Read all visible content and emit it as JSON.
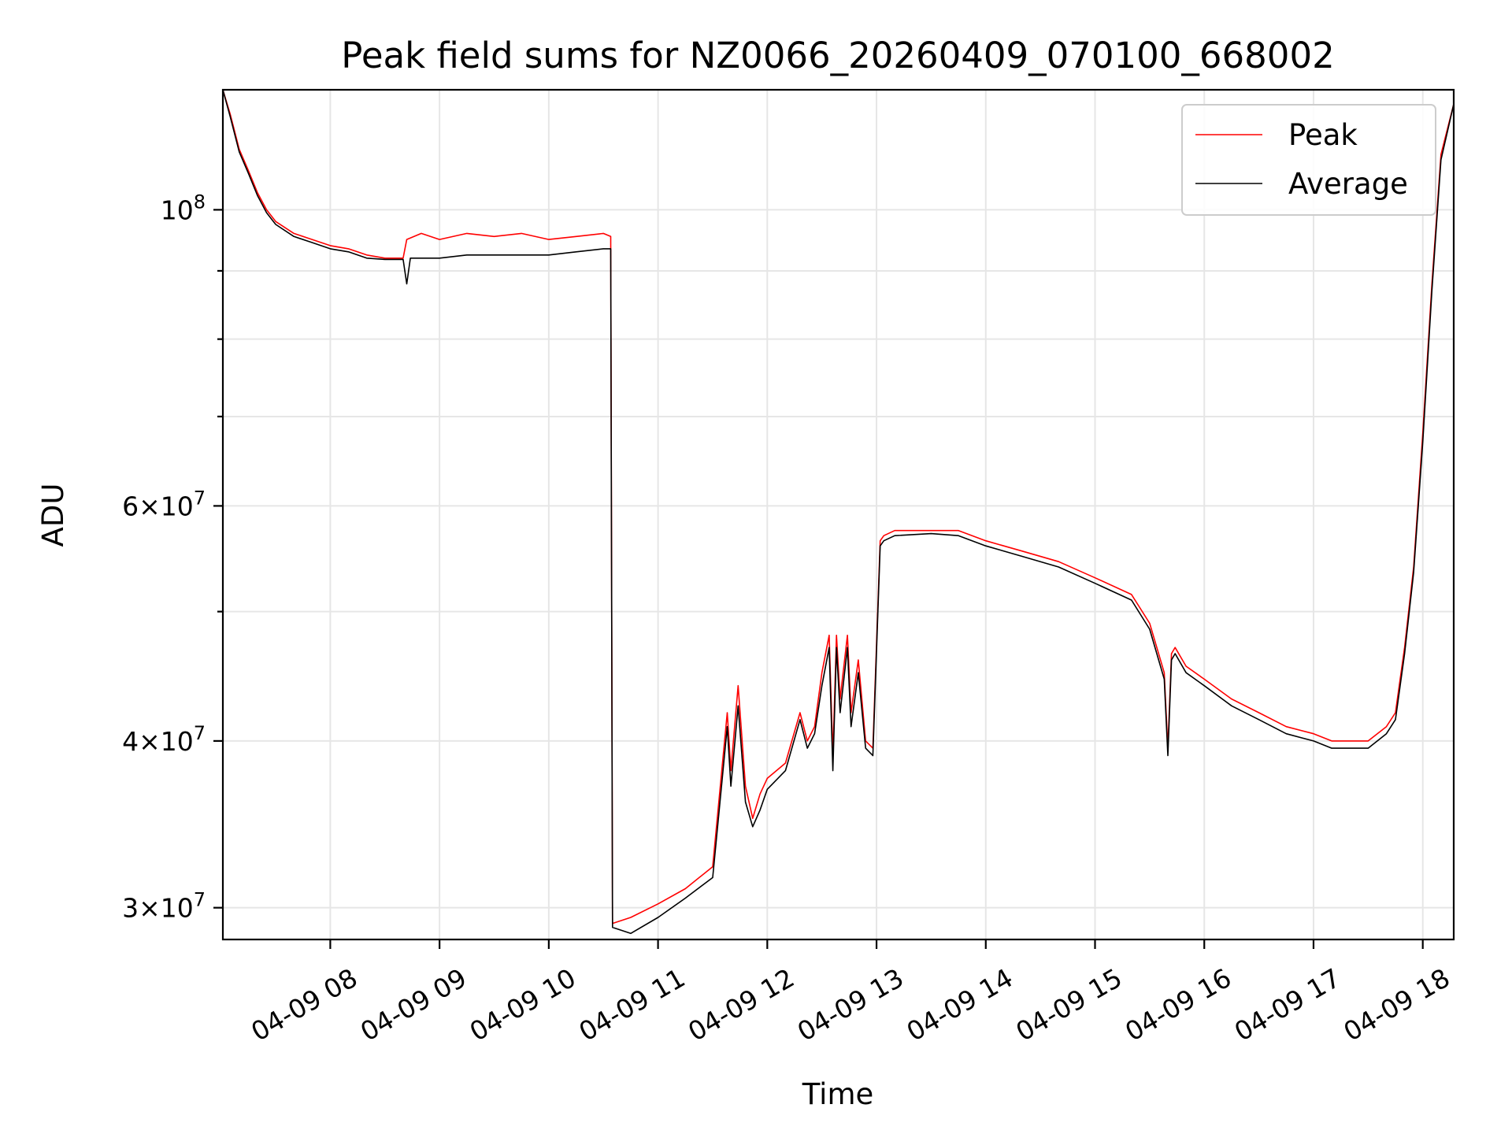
{
  "chart_data": {
    "type": "line",
    "title": "Peak field sums for NZ0066_20260409_070100_668002",
    "xlabel": "Time",
    "ylabel": "ADU",
    "xlim": [
      "04-09 07:01",
      "04-09 18:17"
    ],
    "ylim": [
      28400000,
      123000000
    ],
    "yscale": "log",
    "grid": true,
    "legend_position": "top-right",
    "x_ticks": [
      "04-09 08",
      "04-09 09",
      "04-09 10",
      "04-09 11",
      "04-09 12",
      "04-09 13",
      "04-09 14",
      "04-09 15",
      "04-09 16",
      "04-09 17",
      "04-09 18"
    ],
    "y_ticks": [
      {
        "value": 30000000,
        "mantissa": "3",
        "exponent": "7"
      },
      {
        "value": 40000000,
        "mantissa": "4",
        "exponent": "7"
      },
      {
        "value": 60000000,
        "mantissa": "6",
        "exponent": "7"
      },
      {
        "value": 100000000,
        "mantissa": "",
        "exponent": "8"
      }
    ],
    "y_minor_ticks": [
      50000000,
      70000000,
      80000000,
      90000000
    ],
    "series": [
      {
        "name": "Peak",
        "color": "#ff0000",
        "x": [
          "04-09 07:01",
          "04-09 07:05",
          "04-09 07:10",
          "04-09 07:15",
          "04-09 07:20",
          "04-09 07:25",
          "04-09 07:30",
          "04-09 07:40",
          "04-09 07:50",
          "04-09 08:00",
          "04-09 08:10",
          "04-09 08:20",
          "04-09 08:30",
          "04-09 08:40",
          "04-09 08:42",
          "04-09 08:50",
          "04-09 09:00",
          "04-09 09:15",
          "04-09 09:30",
          "04-09 09:45",
          "04-09 10:00",
          "04-09 10:15",
          "04-09 10:30",
          "04-09 10:34",
          "04-09 10:35",
          "04-09 10:45",
          "04-09 11:00",
          "04-09 11:15",
          "04-09 11:30",
          "04-09 11:38",
          "04-09 11:40",
          "04-09 11:44",
          "04-09 11:48",
          "04-09 11:52",
          "04-09 11:56",
          "04-09 12:00",
          "04-09 12:10",
          "04-09 12:18",
          "04-09 12:22",
          "04-09 12:26",
          "04-09 12:30",
          "04-09 12:34",
          "04-09 12:36",
          "04-09 12:38",
          "04-09 12:40",
          "04-09 12:44",
          "04-09 12:46",
          "04-09 12:50",
          "04-09 12:54",
          "04-09 12:58",
          "04-09 13:02",
          "04-09 13:04",
          "04-09 13:10",
          "04-09 13:30",
          "04-09 13:45",
          "04-09 14:00",
          "04-09 14:20",
          "04-09 14:40",
          "04-09 15:00",
          "04-09 15:20",
          "04-09 15:30",
          "04-09 15:38",
          "04-09 15:40",
          "04-09 15:42",
          "04-09 15:44",
          "04-09 15:50",
          "04-09 16:00",
          "04-09 16:15",
          "04-09 16:30",
          "04-09 16:45",
          "04-09 17:00",
          "04-09 17:10",
          "04-09 17:20",
          "04-09 17:30",
          "04-09 17:40",
          "04-09 17:45",
          "04-09 17:50",
          "04-09 17:55",
          "04-09 18:00",
          "04-09 18:05",
          "04-09 18:10",
          "04-09 18:17"
        ],
        "y": [
          123000000,
          118000000,
          111000000,
          107000000,
          103000000,
          100000000,
          98000000,
          96000000,
          95000000,
          94000000,
          93500000,
          92500000,
          92000000,
          92000000,
          95000000,
          96000000,
          95000000,
          96000000,
          95500000,
          96000000,
          95000000,
          95500000,
          96000000,
          95500000,
          29200000,
          29500000,
          30200000,
          31000000,
          32200000,
          42000000,
          38000000,
          44000000,
          37000000,
          35000000,
          36500000,
          37500000,
          38500000,
          42000000,
          40000000,
          41000000,
          45000000,
          48000000,
          39000000,
          48000000,
          43000000,
          48000000,
          42000000,
          46000000,
          40000000,
          39500000,
          56500000,
          57000000,
          57500000,
          57500000,
          57500000,
          56500000,
          55500000,
          54500000,
          53000000,
          51500000,
          49000000,
          45000000,
          39500000,
          46500000,
          47000000,
          45500000,
          44500000,
          43000000,
          42000000,
          41000000,
          40500000,
          40000000,
          40000000,
          40000000,
          41000000,
          42000000,
          47000000,
          54000000,
          68000000,
          88000000,
          110000000,
          120000000
        ]
      },
      {
        "name": "Average",
        "color": "#000000",
        "x": [
          "04-09 07:01",
          "04-09 07:05",
          "04-09 07:10",
          "04-09 07:15",
          "04-09 07:20",
          "04-09 07:25",
          "04-09 07:30",
          "04-09 07:40",
          "04-09 07:50",
          "04-09 08:00",
          "04-09 08:10",
          "04-09 08:20",
          "04-09 08:30",
          "04-09 08:40",
          "04-09 08:42",
          "04-09 08:44",
          "04-09 08:50",
          "04-09 09:00",
          "04-09 09:15",
          "04-09 09:30",
          "04-09 09:45",
          "04-09 10:00",
          "04-09 10:15",
          "04-09 10:30",
          "04-09 10:34",
          "04-09 10:35",
          "04-09 10:45",
          "04-09 11:00",
          "04-09 11:15",
          "04-09 11:30",
          "04-09 11:38",
          "04-09 11:40",
          "04-09 11:44",
          "04-09 11:48",
          "04-09 11:52",
          "04-09 11:56",
          "04-09 12:00",
          "04-09 12:10",
          "04-09 12:18",
          "04-09 12:22",
          "04-09 12:26",
          "04-09 12:30",
          "04-09 12:34",
          "04-09 12:36",
          "04-09 12:38",
          "04-09 12:40",
          "04-09 12:44",
          "04-09 12:46",
          "04-09 12:50",
          "04-09 12:54",
          "04-09 12:58",
          "04-09 13:02",
          "04-09 13:04",
          "04-09 13:10",
          "04-09 13:30",
          "04-09 13:45",
          "04-09 14:00",
          "04-09 14:20",
          "04-09 14:40",
          "04-09 15:00",
          "04-09 15:20",
          "04-09 15:30",
          "04-09 15:38",
          "04-09 15:40",
          "04-09 15:42",
          "04-09 15:44",
          "04-09 15:50",
          "04-09 16:00",
          "04-09 16:15",
          "04-09 16:30",
          "04-09 16:45",
          "04-09 17:00",
          "04-09 17:10",
          "04-09 17:20",
          "04-09 17:30",
          "04-09 17:40",
          "04-09 17:45",
          "04-09 17:50",
          "04-09 17:55",
          "04-09 18:00",
          "04-09 18:05",
          "04-09 18:10",
          "04-09 18:17"
        ],
        "y": [
          123000000,
          117500000,
          110500000,
          106500000,
          102500000,
          99500000,
          97500000,
          95500000,
          94500000,
          93500000,
          93000000,
          92000000,
          91800000,
          91800000,
          88000000,
          92000000,
          92000000,
          92000000,
          92500000,
          92500000,
          92500000,
          92500000,
          93000000,
          93500000,
          93500000,
          29000000,
          28700000,
          29500000,
          30500000,
          31600000,
          41000000,
          37000000,
          42500000,
          36000000,
          34500000,
          35500000,
          36800000,
          38000000,
          41500000,
          39500000,
          40500000,
          44000000,
          47000000,
          38000000,
          47000000,
          42000000,
          47000000,
          41000000,
          45000000,
          39500000,
          39000000,
          56000000,
          56500000,
          57000000,
          57200000,
          57000000,
          56000000,
          55000000,
          54000000,
          52500000,
          51000000,
          48500000,
          44500000,
          39000000,
          46000000,
          46500000,
          45000000,
          44000000,
          42500000,
          41500000,
          40500000,
          40000000,
          39500000,
          39500000,
          39500000,
          40500000,
          41500000,
          46500000,
          53500000,
          67000000,
          87000000,
          109000000,
          120000000
        ]
      }
    ]
  }
}
